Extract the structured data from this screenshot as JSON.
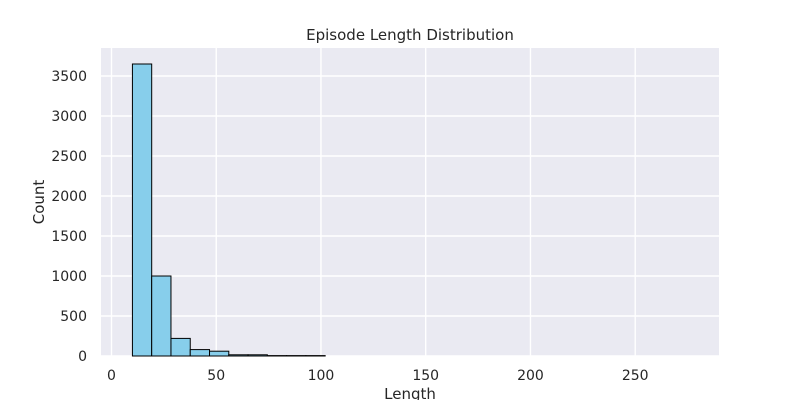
{
  "chart_data": {
    "type": "bar",
    "title": "Episode Length Distribution",
    "xlabel": "Length",
    "ylabel": "Count",
    "xlim": [
      -5,
      290
    ],
    "ylim": [
      0,
      3850
    ],
    "xticks": [
      0,
      50,
      100,
      150,
      200,
      250
    ],
    "yticks": [
      0,
      500,
      1000,
      1500,
      2000,
      2500,
      3000,
      3500
    ],
    "grid": true,
    "bin_edges": [
      10,
      19.2,
      28.4,
      37.6,
      46.8,
      56,
      65.2,
      74.4,
      83.6,
      92.8,
      102
    ],
    "values": [
      3650,
      1000,
      220,
      80,
      60,
      15,
      15,
      5,
      5,
      5
    ],
    "colors": {
      "background": "#eaeaf2",
      "grid": "#ffffff",
      "bar_fill": "#87ceeb",
      "bar_edge": "#000000",
      "text": "#262626"
    }
  }
}
